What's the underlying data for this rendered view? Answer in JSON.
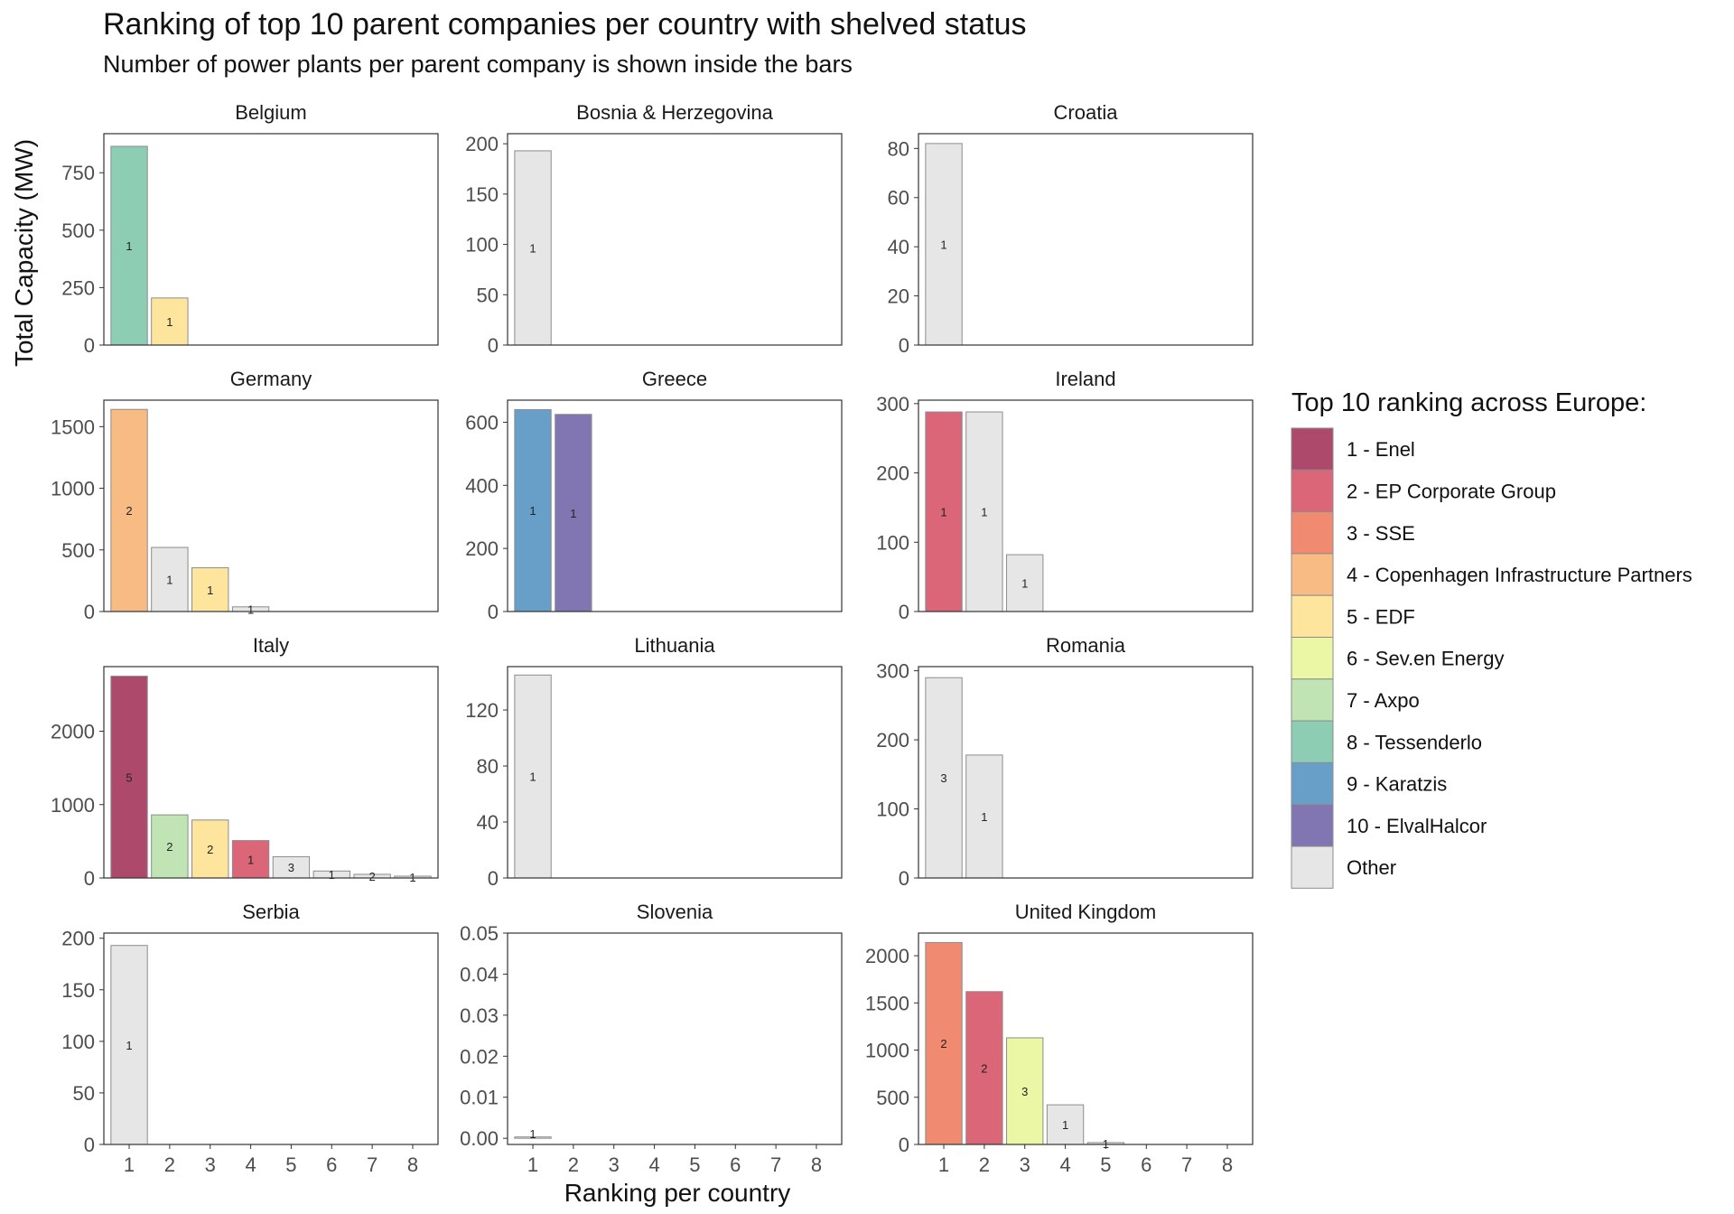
{
  "chart_data": {
    "type": "bar",
    "title": "Ranking of top 10 parent companies per country with shelved status",
    "subtitle": "Number of power plants per parent company is shown inside the bars",
    "xlabel": "Ranking per country",
    "ylabel": "Total Capacity (MW)",
    "x_ticks": [
      "1",
      "2",
      "3",
      "4",
      "5",
      "6",
      "7",
      "8"
    ],
    "legend": {
      "title": "Top 10 ranking across Europe:",
      "placement": "right",
      "entries": [
        {
          "key": "1",
          "label": "1 - Enel",
          "color": "#ad4a6c"
        },
        {
          "key": "2",
          "label": "2 - EP Corporate Group",
          "color": "#da6677"
        },
        {
          "key": "3",
          "label": "3 - SSE",
          "color": "#f08b71"
        },
        {
          "key": "4",
          "label": "4 - Copenhagen Infrastructure Partners",
          "color": "#f9bb84"
        },
        {
          "key": "5",
          "label": "5 - EDF",
          "color": "#fde59e"
        },
        {
          "key": "6",
          "label": "6 - Sev.en Energy",
          "color": "#ebf7a5"
        },
        {
          "key": "7",
          "label": "7 - Axpo",
          "color": "#c0e4b4"
        },
        {
          "key": "8",
          "label": "8 - Tessenderlo",
          "color": "#8dcdb4"
        },
        {
          "key": "9",
          "label": "9 - Karatzis",
          "color": "#679fc9"
        },
        {
          "key": "10",
          "label": "10 - ElvalHalcor",
          "color": "#8276b2"
        },
        {
          "key": "other",
          "label": "Other",
          "color": "#e6e6e6"
        }
      ]
    },
    "facets": [
      {
        "name": "Belgium",
        "ylim": [
          0,
          920
        ],
        "yticks": [
          0,
          250,
          500,
          750
        ],
        "tick_labels": [
          "0",
          "250",
          "500",
          "750"
        ],
        "bars": [
          {
            "rank": 1,
            "value": 865,
            "group": "8",
            "count": "1"
          },
          {
            "rank": 2,
            "value": 205,
            "group": "5",
            "count": "1"
          }
        ]
      },
      {
        "name": "Bosnia & Herzegovina",
        "ylim": [
          0,
          210
        ],
        "yticks": [
          0,
          50,
          100,
          150,
          200
        ],
        "tick_labels": [
          "0",
          "50",
          "100",
          "150",
          "200"
        ],
        "bars": [
          {
            "rank": 1,
            "value": 193,
            "group": "other",
            "count": "1"
          }
        ]
      },
      {
        "name": "Croatia",
        "ylim": [
          0,
          86
        ],
        "yticks": [
          0,
          20,
          40,
          60,
          80
        ],
        "tick_labels": [
          "0",
          "20",
          "40",
          "60",
          "80"
        ],
        "bars": [
          {
            "rank": 1,
            "value": 82,
            "group": "other",
            "count": "1"
          }
        ]
      },
      {
        "name": "Germany",
        "ylim": [
          0,
          1715
        ],
        "yticks": [
          0,
          500,
          1000,
          1500
        ],
        "tick_labels": [
          "0",
          "500",
          "1000",
          "1500"
        ],
        "bars": [
          {
            "rank": 1,
            "value": 1640,
            "group": "4",
            "count": "2"
          },
          {
            "rank": 2,
            "value": 520,
            "group": "other",
            "count": "1"
          },
          {
            "rank": 3,
            "value": 355,
            "group": "5",
            "count": "1"
          },
          {
            "rank": 4,
            "value": 38,
            "group": "other",
            "count": "1"
          }
        ]
      },
      {
        "name": "Greece",
        "ylim": [
          0,
          670
        ],
        "yticks": [
          0,
          200,
          400,
          600
        ],
        "tick_labels": [
          "0",
          "200",
          "400",
          "600"
        ],
        "bars": [
          {
            "rank": 1,
            "value": 640,
            "group": "9",
            "count": "1"
          },
          {
            "rank": 2,
            "value": 625,
            "group": "10",
            "count": "1"
          }
        ]
      },
      {
        "name": "Ireland",
        "ylim": [
          0,
          305
        ],
        "yticks": [
          0,
          100,
          200,
          300
        ],
        "tick_labels": [
          "0",
          "100",
          "200",
          "300"
        ],
        "bars": [
          {
            "rank": 1,
            "value": 288,
            "group": "2",
            "count": "1"
          },
          {
            "rank": 2,
            "value": 288,
            "group": "other",
            "count": "1"
          },
          {
            "rank": 3,
            "value": 82,
            "group": "other",
            "count": "1"
          }
        ]
      },
      {
        "name": "Italy",
        "ylim": [
          0,
          2880
        ],
        "yticks": [
          0,
          1000,
          2000
        ],
        "tick_labels": [
          "0",
          "1000",
          "2000"
        ],
        "bars": [
          {
            "rank": 1,
            "value": 2750,
            "group": "1",
            "count": "5"
          },
          {
            "rank": 2,
            "value": 860,
            "group": "7",
            "count": "2"
          },
          {
            "rank": 3,
            "value": 790,
            "group": "5",
            "count": "2"
          },
          {
            "rank": 4,
            "value": 510,
            "group": "2",
            "count": "1"
          },
          {
            "rank": 5,
            "value": 290,
            "group": "other",
            "count": "3"
          },
          {
            "rank": 6,
            "value": 95,
            "group": "other",
            "count": "1"
          },
          {
            "rank": 7,
            "value": 50,
            "group": "other",
            "count": "2"
          },
          {
            "rank": 8,
            "value": 25,
            "group": "other",
            "count": "1"
          }
        ]
      },
      {
        "name": "Lithuania",
        "ylim": [
          0,
          151
        ],
        "yticks": [
          0,
          40,
          80,
          120
        ],
        "tick_labels": [
          "0",
          "40",
          "80",
          "120"
        ],
        "bars": [
          {
            "rank": 1,
            "value": 145,
            "group": "other",
            "count": "1"
          }
        ]
      },
      {
        "name": "Romania",
        "ylim": [
          0,
          306
        ],
        "yticks": [
          0,
          100,
          200,
          300
        ],
        "tick_labels": [
          "0",
          "100",
          "200",
          "300"
        ],
        "bars": [
          {
            "rank": 1,
            "value": 290,
            "group": "other",
            "count": "3"
          },
          {
            "rank": 2,
            "value": 178,
            "group": "other",
            "count": "1"
          }
        ]
      },
      {
        "name": "Serbia",
        "ylim": [
          0,
          205
        ],
        "yticks": [
          0,
          50,
          100,
          150,
          200
        ],
        "tick_labels": [
          "0",
          "50",
          "100",
          "150",
          "200"
        ],
        "bars": [
          {
            "rank": 1,
            "value": 193,
            "group": "other",
            "count": "1"
          }
        ]
      },
      {
        "name": "Slovenia",
        "ylim": [
          -0.0015,
          0.05
        ],
        "yticks": [
          0,
          0.01,
          0.02,
          0.03,
          0.04,
          0.05
        ],
        "tick_labels": [
          "0.00",
          "0.01",
          "0.02",
          "0.03",
          "0.04",
          "0.05"
        ],
        "bars": [
          {
            "rank": 1,
            "value": 0,
            "group": "other",
            "count": "1"
          }
        ]
      },
      {
        "name": "United Kingdom",
        "ylim": [
          0,
          2240
        ],
        "yticks": [
          0,
          500,
          1000,
          1500,
          2000
        ],
        "tick_labels": [
          "0",
          "500",
          "1000",
          "1500",
          "2000"
        ],
        "bars": [
          {
            "rank": 1,
            "value": 2140,
            "group": "3",
            "count": "2"
          },
          {
            "rank": 2,
            "value": 1620,
            "group": "2",
            "count": "2"
          },
          {
            "rank": 3,
            "value": 1130,
            "group": "6",
            "count": "3"
          },
          {
            "rank": 4,
            "value": 420,
            "group": "other",
            "count": "1"
          },
          {
            "rank": 5,
            "value": 20,
            "group": "other",
            "count": "1"
          }
        ]
      }
    ]
  }
}
